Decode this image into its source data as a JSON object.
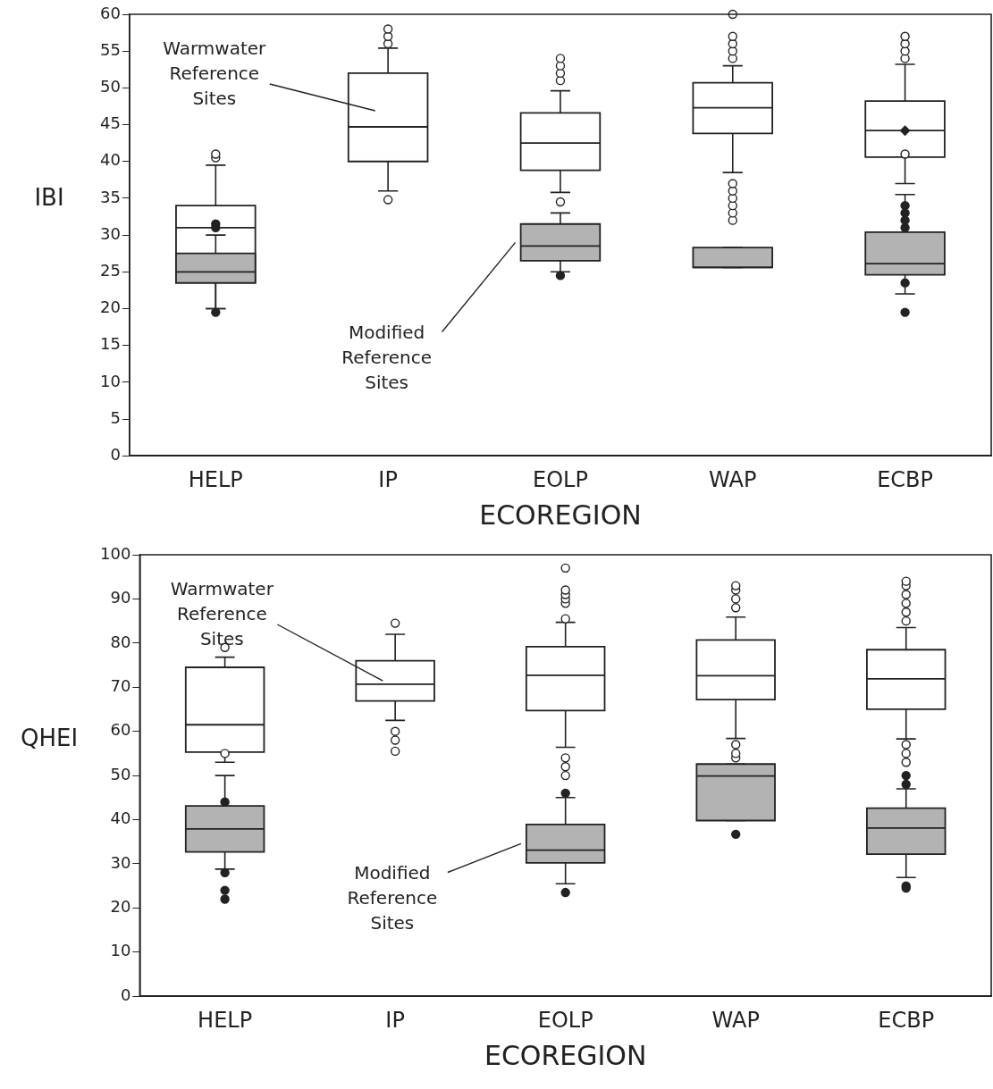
{
  "chart_data": [
    {
      "type": "box",
      "xlabel": "ECOREGION",
      "ylabel": "IBI",
      "categories": [
        "HELP",
        "IP",
        "EOLP",
        "WAP",
        "ECBP"
      ],
      "ylim": [
        0,
        60
      ],
      "yticks": [
        0,
        5,
        10,
        15,
        20,
        25,
        30,
        35,
        40,
        45,
        50,
        55,
        60
      ],
      "grid": false,
      "legend": false,
      "series": [
        {
          "name": "Warmwater Reference Sites",
          "color": "#ffffff",
          "boxes": [
            {
              "low": 20,
              "q1": 23.5,
              "median": 31,
              "q3": 34,
              "high": 39.5,
              "outliers": [
                40.5,
                41
              ]
            },
            {
              "low": 36,
              "q1": 40,
              "median": 44.7,
              "q3": 52,
              "high": 55.4,
              "outliers": [
                56,
                57,
                58,
                34.8
              ]
            },
            {
              "low": 35.8,
              "q1": 38.8,
              "median": 42.5,
              "q3": 46.6,
              "high": 49.6,
              "outliers": [
                51,
                52,
                53,
                54,
                34.5
              ]
            },
            {
              "low": 38.5,
              "q1": 43.8,
              "median": 47.3,
              "q3": 50.7,
              "high": 53,
              "outliers": [
                54,
                55,
                56,
                57,
                60,
                32,
                33,
                34,
                35,
                36,
                37
              ]
            },
            {
              "low": 37,
              "q1": 40.6,
              "median": 44.2,
              "q3": 48.2,
              "high": 53.2,
              "mean": 44.2,
              "outliers": [
                54,
                55,
                56,
                57,
                41
              ]
            }
          ]
        },
        {
          "name": "Modified Reference Sites",
          "color": "#b3b3b3",
          "boxes": [
            {
              "low": 20,
              "q1": 23.5,
              "median": 25,
              "q3": 27.5,
              "high": 30,
              "outliers": [
                31,
                31.5,
                19.5
              ]
            },
            null,
            {
              "low": 25,
              "q1": 26.5,
              "median": 28.5,
              "q3": 31.5,
              "high": 33,
              "outliers": [
                24.5
              ]
            },
            {
              "low": 25.6,
              "q1": 25.6,
              "median": 25.6,
              "q3": 28.3,
              "high": 28.3
            },
            {
              "low": 22,
              "q1": 24.6,
              "median": 26.1,
              "q3": 30.4,
              "high": 35.5,
              "outliers": [
                31,
                32,
                33,
                34,
                23.5,
                19.5
              ]
            }
          ]
        }
      ]
    },
    {
      "type": "box",
      "xlabel": "ECOREGION",
      "ylabel": "QHEI",
      "categories": [
        "HELP",
        "IP",
        "EOLP",
        "WAP",
        "ECBP"
      ],
      "ylim": [
        0,
        100
      ],
      "yticks": [
        0,
        10,
        20,
        30,
        40,
        50,
        60,
        70,
        80,
        90,
        100
      ],
      "grid": false,
      "legend": false,
      "series": [
        {
          "name": "Warmwater Reference Sites",
          "color": "#ffffff",
          "boxes": [
            {
              "low": 53,
              "q1": 55.3,
              "median": 61.5,
              "q3": 74.5,
              "high": 76.8,
              "outliers": [
                79,
                55
              ]
            },
            {
              "low": 62.5,
              "q1": 66.9,
              "median": 70.7,
              "q3": 76,
              "high": 82,
              "outliers": [
                84.5,
                60,
                58,
                55.5
              ]
            },
            {
              "low": 56.4,
              "q1": 64.7,
              "median": 72.7,
              "q3": 79.2,
              "high": 84.7,
              "outliers": [
                85.5,
                89,
                90,
                91,
                92,
                97,
                50,
                52,
                54
              ]
            },
            {
              "low": 58.4,
              "q1": 67.2,
              "median": 72.6,
              "q3": 80.7,
              "high": 85.9,
              "outliers": [
                88,
                90,
                92,
                93,
                54,
                55,
                57
              ]
            },
            {
              "low": 58.3,
              "q1": 65,
              "median": 71.9,
              "q3": 78.5,
              "high": 83.5,
              "outliers": [
                85,
                87,
                89,
                91,
                93,
                94,
                53,
                55,
                57
              ]
            }
          ]
        },
        {
          "name": "Modified Reference Sites",
          "color": "#b3b3b3",
          "boxes": [
            {
              "low": 28.8,
              "q1": 32.7,
              "median": 37.9,
              "q3": 43.1,
              "high": 50,
              "outliers": [
                44,
                28,
                24,
                22
              ]
            },
            null,
            {
              "low": 25.5,
              "q1": 30.2,
              "median": 33.1,
              "q3": 38.9,
              "high": 45,
              "outliers": [
                46,
                23.5
              ]
            },
            {
              "low": 39.8,
              "q1": 39.8,
              "median": 49.9,
              "q3": 52.6,
              "high": 52.6,
              "outliers": [
                36.7
              ]
            },
            {
              "low": 26.9,
              "q1": 32.2,
              "median": 38.1,
              "q3": 42.6,
              "high": 47,
              "outliers": [
                48,
                50,
                25,
                24.5
              ]
            }
          ]
        }
      ]
    }
  ]
}
